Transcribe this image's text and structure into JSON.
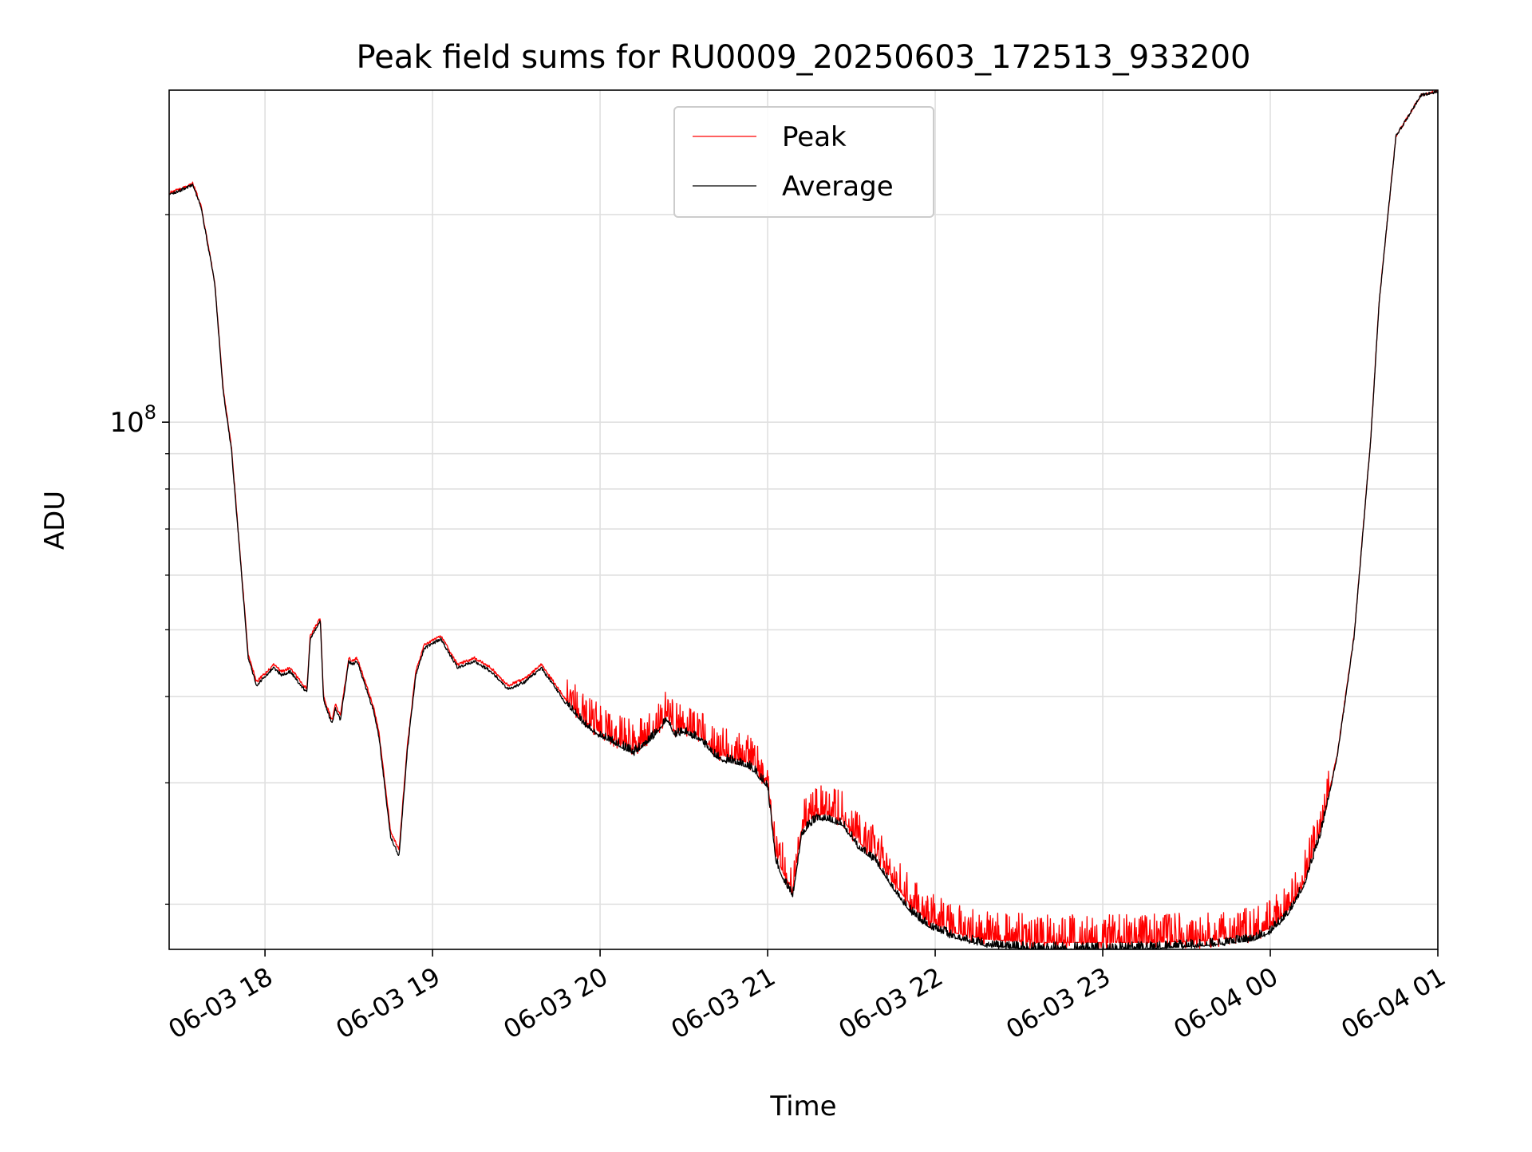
{
  "chart_data": {
    "type": "line",
    "title": "Peak field sums for RU0009_20250603_172513_933200",
    "xlabel": "Time",
    "ylabel": "ADU",
    "yscale": "log",
    "ylim": [
      17200000.0,
      303000000.0
    ],
    "grid": true,
    "legend_position": "top-center",
    "x_tick_labels": [
      "06-03 18",
      "06-03 19",
      "06-03 20",
      "06-03 21",
      "06-03 22",
      "06-03 23",
      "06-04 00",
      "06-04 01"
    ],
    "x_tick_hours": [
      18,
      19,
      20,
      21,
      22,
      23,
      24,
      25
    ],
    "x_range_hours": [
      17.428,
      25.0
    ],
    "y_major_ticks": [
      {
        "value": 100000000,
        "base": "10",
        "exp": "8"
      }
    ],
    "y_minor_ticks": [
      20000000,
      30000000,
      40000000,
      50000000,
      60000000,
      70000000,
      80000000,
      90000000,
      200000000
    ],
    "series": [
      {
        "name": "Peak",
        "color": "#ff0000",
        "noise_amplitude": 0.1,
        "noise_start_hour": 19.8,
        "x_hours": [
          17.43,
          17.5,
          17.57,
          17.62,
          17.7,
          17.75,
          17.8,
          17.85,
          17.9,
          17.95,
          18.05,
          18.1,
          18.15,
          18.25,
          18.27,
          18.33,
          18.35,
          18.4,
          18.42,
          18.45,
          18.5,
          18.52,
          18.55,
          18.65,
          18.68,
          18.75,
          18.8,
          18.85,
          18.9,
          18.95,
          19.05,
          19.15,
          19.25,
          19.35,
          19.45,
          19.55,
          19.65,
          19.8,
          19.9,
          20.0,
          20.1,
          20.2,
          20.3,
          20.4,
          20.45,
          20.5,
          20.6,
          20.7,
          20.9,
          21.0,
          21.05,
          21.1,
          21.15,
          21.2,
          21.25,
          21.3,
          21.35,
          21.45,
          21.55,
          21.65,
          21.75,
          21.85,
          21.95,
          22.1,
          22.3,
          22.6,
          23.0,
          23.3,
          23.6,
          23.9,
          24.0,
          24.1,
          24.2,
          24.3,
          24.4,
          24.5,
          24.6,
          24.65,
          24.75,
          24.9,
          25.0
        ],
        "values": [
          215000000,
          218000000,
          222000000,
          205000000,
          160000000,
          112000000,
          92000000,
          65000000,
          46000000,
          42000000,
          44500000,
          43500000,
          44000000,
          41000000,
          49000000,
          52000000,
          40000000,
          37000000,
          39000000,
          37500000,
          45500000,
          45000000,
          45500000,
          38500000,
          35500000,
          25500000,
          24000000,
          34000000,
          43500000,
          47500000,
          49000000,
          44500000,
          45500000,
          44000000,
          41500000,
          42500000,
          44500000,
          39500000,
          37000000,
          35500000,
          34500000,
          33500000,
          35000000,
          37500000,
          35500000,
          36000000,
          35000000,
          33000000,
          32000000,
          30000000,
          23500000,
          22000000,
          21000000,
          25500000,
          26500000,
          27000000,
          27000000,
          26500000,
          24500000,
          23500000,
          21500000,
          20000000,
          19000000,
          18200000,
          17800000,
          17600000,
          17600000,
          17600000,
          17700000,
          18000000,
          18500000,
          19500000,
          21500000,
          25500000,
          33000000,
          49000000,
          95000000,
          150000000,
          260000000,
          298000000,
          302000000
        ]
      },
      {
        "name": "Average",
        "color": "#000000",
        "noise_amplitude": 0.025,
        "noise_start_hour": 19.8,
        "x_hours": [
          17.43,
          17.5,
          17.57,
          17.62,
          17.7,
          17.75,
          17.8,
          17.85,
          17.9,
          17.95,
          18.05,
          18.1,
          18.15,
          18.25,
          18.27,
          18.33,
          18.35,
          18.4,
          18.42,
          18.45,
          18.5,
          18.52,
          18.55,
          18.65,
          18.68,
          18.75,
          18.8,
          18.85,
          18.9,
          18.95,
          19.05,
          19.15,
          19.25,
          19.35,
          19.45,
          19.55,
          19.65,
          19.8,
          19.9,
          20.0,
          20.1,
          20.2,
          20.3,
          20.4,
          20.45,
          20.5,
          20.6,
          20.7,
          20.9,
          21.0,
          21.05,
          21.1,
          21.15,
          21.2,
          21.25,
          21.3,
          21.35,
          21.45,
          21.55,
          21.65,
          21.75,
          21.85,
          21.95,
          22.1,
          22.3,
          22.6,
          23.0,
          23.3,
          23.6,
          23.9,
          24.0,
          24.1,
          24.2,
          24.3,
          24.4,
          24.5,
          24.6,
          24.65,
          24.75,
          24.9,
          25.0
        ],
        "values": [
          214000000,
          217000000,
          221000000,
          204000000,
          159000000,
          111000000,
          91000000,
          64500000,
          45500000,
          41500000,
          44000000,
          43000000,
          43500000,
          40500000,
          48500000,
          51500000,
          39500000,
          36500000,
          38500000,
          37000000,
          45000000,
          44500000,
          45000000,
          38000000,
          35000000,
          25000000,
          23500000,
          33500000,
          43000000,
          47000000,
          48500000,
          44000000,
          45000000,
          43500000,
          41000000,
          42000000,
          44000000,
          39000000,
          36500000,
          35000000,
          34000000,
          33000000,
          34500000,
          37000000,
          35000000,
          35500000,
          34500000,
          32500000,
          31500000,
          29500000,
          23000000,
          21500000,
          20500000,
          25000000,
          26000000,
          26500000,
          26500000,
          26000000,
          24000000,
          23000000,
          21000000,
          19500000,
          18600000,
          17900000,
          17400000,
          17200000,
          17200000,
          17250000,
          17400000,
          17700000,
          18200000,
          19200000,
          21200000,
          25200000,
          32800000,
          48800000,
          94800000,
          149800000,
          259800000,
          297800000,
          301800000
        ]
      }
    ]
  }
}
